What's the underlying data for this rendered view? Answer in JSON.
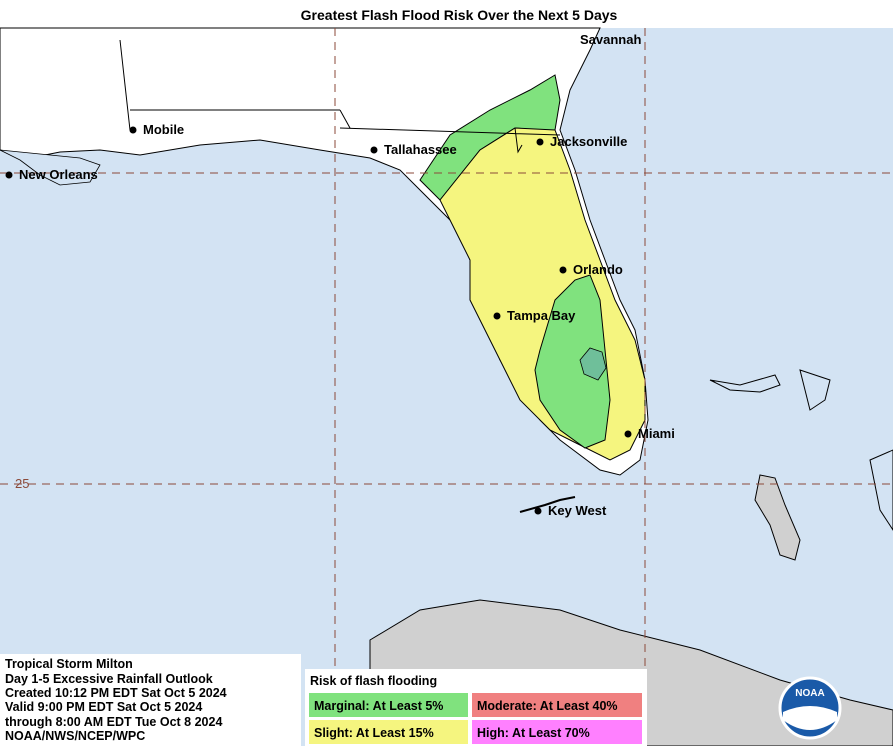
{
  "title": "Greatest Flash Flood Risk Over the Next 5 Days",
  "cities": [
    "Savannah",
    "Mobile",
    "Tallahassee",
    "Jacksonville",
    "New Orleans",
    "Orlando",
    "Tampa Bay",
    "Miami",
    "Key West"
  ],
  "latitude_label": "25",
  "info": [
    "Tropical Storm Milton",
    "Day 1-5 Excessive Rainfall Outlook",
    "Created 10:12 PM EDT Sat Oct 5 2024",
    "Valid 9:00 PM EDT Sat Oct 5 2024",
    "through 8:00 AM EDT Tue Oct 8 2024",
    "NOAA/NWS/NCEP/WPC"
  ],
  "legend": {
    "title": "Risk of flash flooding",
    "items": [
      {
        "label": "Marginal: At Least 5%",
        "color": "#80e27e"
      },
      {
        "label": "Moderate: At Least 40%",
        "color": "#f08080"
      },
      {
        "label": "Slight: At Least 15%",
        "color": "#f5f57f"
      },
      {
        "label": "High: At Least 70%",
        "color": "#ff80ff"
      }
    ]
  },
  "logo": "NOAA"
}
